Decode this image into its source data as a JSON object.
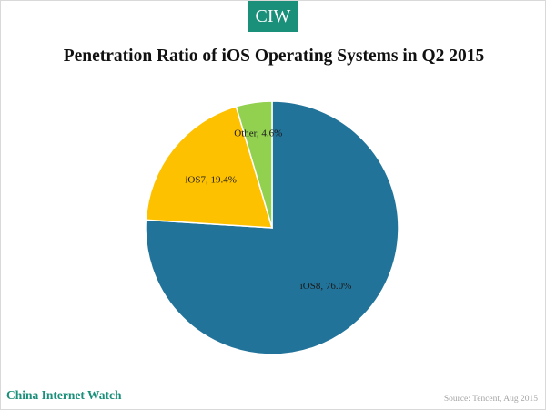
{
  "badge": {
    "label": "CIW"
  },
  "footer": {
    "brand": "China Internet Watch",
    "source": "Source: Tencent, Aug 2015"
  },
  "colors": {
    "brand": "#1a8f7a",
    "ios8": "#22739a",
    "ios7": "#fdc100",
    "other": "#92d050"
  },
  "chart_data": {
    "type": "pie",
    "title": "Penetration Ratio of iOS Operating Systems in Q2 2015",
    "legend": "none",
    "slices": [
      {
        "label": "iOS8",
        "value": 76.0,
        "display": "iOS8, 76.0%",
        "color": "#22739a"
      },
      {
        "label": "iOS7",
        "value": 19.4,
        "display": "iOS7, 19.4%",
        "color": "#fdc100"
      },
      {
        "label": "Other",
        "value": 4.6,
        "display": "Other, 4.6%",
        "color": "#92d050"
      }
    ]
  }
}
